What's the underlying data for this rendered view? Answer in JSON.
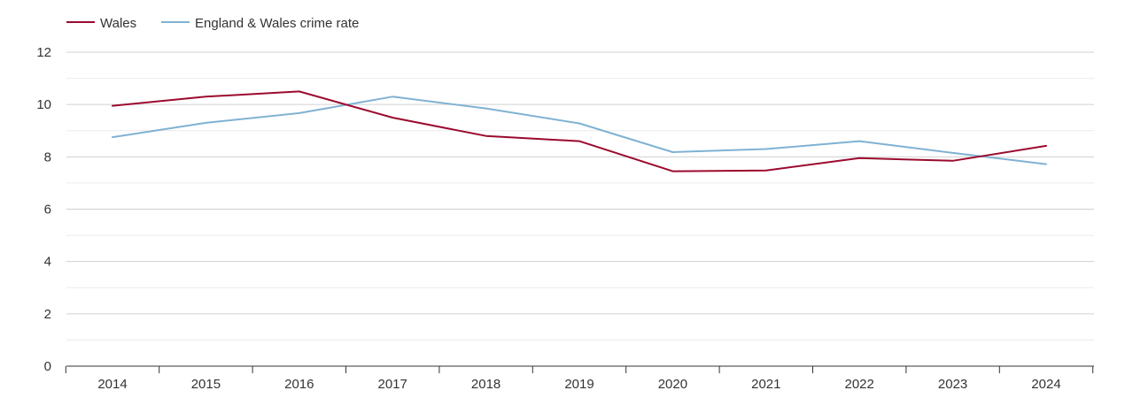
{
  "colors": {
    "wales": "#9b0a2e",
    "england_wales": "#7fb2d3",
    "grid_major": "#d0d0d0",
    "grid_minor": "#ececec",
    "axis": "#333333"
  },
  "legend": {
    "wales_label": "Wales",
    "england_wales_label": "England & Wales crime rate"
  },
  "chart_data": {
    "type": "line",
    "title": "",
    "xlabel": "",
    "ylabel": "",
    "categories": [
      "2014",
      "2015",
      "2016",
      "2017",
      "2018",
      "2019",
      "2020",
      "2021",
      "2022",
      "2023",
      "2024"
    ],
    "yticks": [
      0,
      2,
      4,
      6,
      8,
      10,
      12
    ],
    "ylim": [
      0,
      12
    ],
    "grid": true,
    "legend_position": "top-left",
    "series": [
      {
        "name": "Wales",
        "color": "#9b0a2e",
        "values": [
          9.95,
          10.3,
          10.5,
          9.5,
          8.8,
          8.6,
          7.45,
          7.48,
          7.95,
          7.85,
          8.42
        ]
      },
      {
        "name": "England & Wales crime rate",
        "color": "#7fb2d3",
        "values": [
          8.75,
          9.3,
          9.67,
          10.3,
          9.85,
          9.28,
          8.18,
          8.3,
          8.6,
          8.15,
          7.72
        ]
      }
    ]
  }
}
